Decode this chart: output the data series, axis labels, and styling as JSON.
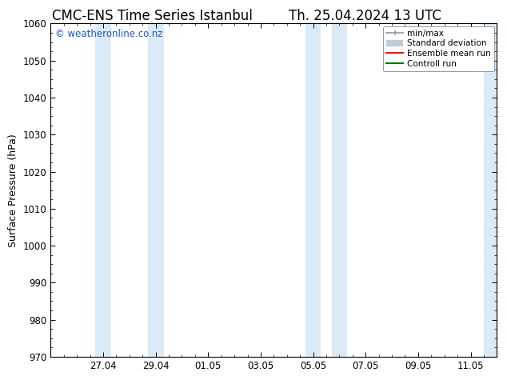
{
  "title_left": "CMC-ENS Time Series Istanbul",
  "title_right": "Th. 25.04.2024 13 UTC",
  "ylabel": "Surface Pressure (hPa)",
  "ylim": [
    970,
    1060
  ],
  "yticks": [
    970,
    980,
    990,
    1000,
    1010,
    1020,
    1030,
    1040,
    1050,
    1060
  ],
  "xlim": [
    0,
    17
  ],
  "xtick_labels": [
    "27.04",
    "29.04",
    "01.05",
    "03.05",
    "05.05",
    "07.05",
    "09.05",
    "11.05"
  ],
  "xtick_positions": [
    2,
    4,
    6,
    8,
    10,
    12,
    14,
    16
  ],
  "shaded_bands": [
    {
      "x_start": 1.7,
      "x_end": 2.3
    },
    {
      "x_start": 3.7,
      "x_end": 4.3
    },
    {
      "x_start": 9.7,
      "x_end": 10.3
    },
    {
      "x_start": 10.7,
      "x_end": 11.3
    },
    {
      "x_start": 16.5,
      "x_end": 17.0
    }
  ],
  "shade_color": "#daeaf7",
  "bg_color": "#ffffff",
  "watermark_text": "© weatheronline.co.nz",
  "watermark_color": "#2255cc",
  "legend_items": [
    {
      "label": "min/max",
      "color": "#999999"
    },
    {
      "label": "Standard deviation",
      "color": "#bbccdd"
    },
    {
      "label": "Ensemble mean run",
      "color": "#ff0000"
    },
    {
      "label": "Controll run",
      "color": "#007700"
    }
  ],
  "title_fontsize": 12,
  "axis_label_fontsize": 9,
  "tick_fontsize": 8.5,
  "watermark_fontsize": 8.5
}
